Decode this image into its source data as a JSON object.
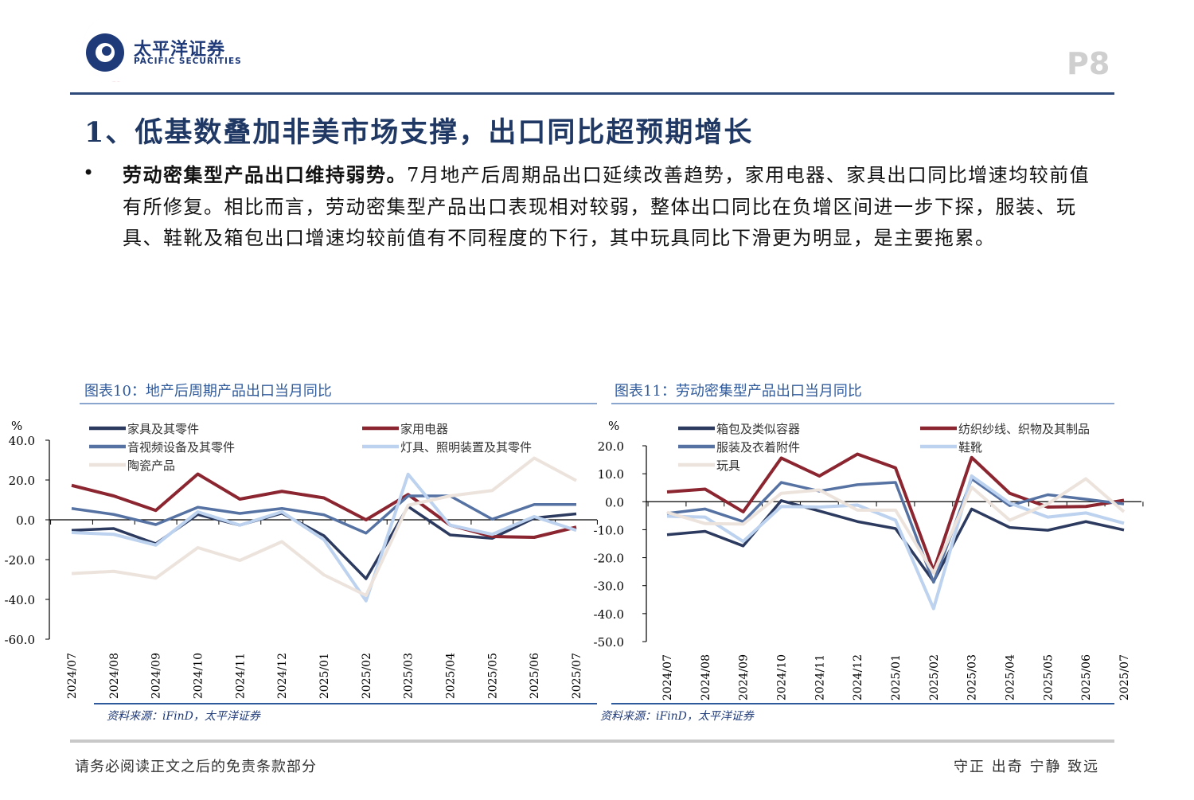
{
  "header": {
    "brand_cn": "太平洋证券",
    "brand_en": "PACIFIC SECURITIES",
    "page": "P8"
  },
  "title": "1、低基数叠加非美市场支撑，出口同比超预期增长",
  "bullet": {
    "bold": "劳动密集型产品出口维持弱势。",
    "text": "7月地产后周期品出口延续改善趋势，家用电器、家具出口同比增速均较前值有所修复。相比而言，劳动密集型产品出口表现相对较弱，整体出口同比在负增区间进一步下探，服装、玩具、鞋靴及箱包出口增速均较前值有不同程度的下行，其中玩具同比下滑更为明显，是主要拖累。"
  },
  "footer": {
    "left": "请务必阅读正文之后的免责条款部分",
    "right": "守正  出奇  宁静  致远"
  },
  "chart_data": [
    {
      "type": "line",
      "title": "图表10：地产后周期产品出口当月同比",
      "ylabel": "%",
      "ylim": [
        -60,
        40
      ],
      "yticks": [
        "40.0",
        "20.0",
        "0.0",
        "-20.0",
        "-40.0",
        "-60.0"
      ],
      "source": "资料来源：iFinD，太平洋证券",
      "categories": [
        "2024/07",
        "2024/08",
        "2024/09",
        "2024/10",
        "2024/11",
        "2024/12",
        "2025/01",
        "2025/02",
        "2025/03",
        "2025/04",
        "2025/05",
        "2025/06",
        "2025/07"
      ],
      "series": [
        {
          "name": "家具及其零件",
          "color": "#2b3a5e",
          "values": [
            -5.3,
            -4.4,
            -12,
            2.7,
            -2.7,
            3.3,
            -8,
            -29.6,
            6.7,
            -7.6,
            -9.3,
            0.9,
            3
          ]
        },
        {
          "name": "家用电器",
          "color": "#8b2530",
          "values": [
            17.3,
            12,
            4.7,
            23,
            10.4,
            14.3,
            11,
            0,
            12.7,
            -2.7,
            -8.4,
            -8.8,
            -3.7
          ]
        },
        {
          "name": "音视频设备及其零件",
          "color": "#5572a3",
          "values": [
            5.7,
            2.7,
            -2.4,
            6.3,
            3.2,
            5.7,
            2.5,
            -6.7,
            12,
            12,
            0.3,
            7.7,
            7.7
          ]
        },
        {
          "name": "灯具、照明装置及其零件",
          "color": "#bcd2ee",
          "values": [
            -6.4,
            -7.3,
            -12.7,
            4,
            -2.7,
            4,
            -10,
            -40.7,
            22.9,
            -2.7,
            -7.3,
            1.6,
            -5.3
          ]
        },
        {
          "name": "陶瓷产品",
          "color": "#ede3dd",
          "values": [
            -27,
            -25.9,
            -29.3,
            -14,
            -20.4,
            -11,
            -27.7,
            -38,
            7.3,
            12,
            14.7,
            31,
            19.7
          ]
        }
      ]
    },
    {
      "type": "line",
      "title": "图表11：劳动密集型产品出口当月同比",
      "ylabel": "%",
      "ylim": [
        -50,
        20
      ],
      "yticks": [
        "20.0",
        "10.0",
        "0.0",
        "-10.0",
        "-20.0",
        "-30.0",
        "-40.0",
        "-50.0"
      ],
      "source": "资料来源：iFinD，太平洋证券",
      "categories": [
        "2024/07",
        "2024/08",
        "2024/09",
        "2024/10",
        "2024/11",
        "2024/12",
        "2025/01",
        "2025/02",
        "2025/03",
        "2025/04",
        "2025/05",
        "2025/06",
        "2025/07"
      ],
      "series": [
        {
          "name": "箱包及类似容器",
          "color": "#2b3a5e",
          "values": [
            -11.8,
            -10.6,
            -15.8,
            0.4,
            -3.3,
            -7.1,
            -9.6,
            -28.5,
            -2.6,
            -9.2,
            -10.2,
            -7.1,
            -10.1
          ]
        },
        {
          "name": "纺织纱线、织物及其制品",
          "color": "#8b2530",
          "values": [
            3.5,
            4.5,
            -3.6,
            15.6,
            9.2,
            17,
            12.1,
            -24.7,
            15.8,
            3,
            -1.9,
            -1.7,
            0.5
          ]
        },
        {
          "name": "服装及衣着附件",
          "color": "#5572a3",
          "values": [
            -4.2,
            -2.6,
            -7.1,
            6.9,
            3.8,
            6.1,
            6.9,
            -28.8,
            8.2,
            -1.4,
            2.5,
            0.9,
            -0.8
          ]
        },
        {
          "name": "鞋靴",
          "color": "#bcd2ee",
          "values": [
            -5.2,
            -5.5,
            -14.2,
            -1.7,
            -1.9,
            -1.2,
            -6.6,
            -38.2,
            9.2,
            -0.5,
            -5.5,
            -4,
            -7.7
          ]
        },
        {
          "name": "玩具",
          "color": "#ede3dd",
          "values": [
            -3.8,
            -7.8,
            -8,
            3,
            4.2,
            -3,
            -3,
            -25.5,
            5.2,
            -6.6,
            -0.8,
            8.2,
            -3.6
          ]
        }
      ]
    }
  ]
}
